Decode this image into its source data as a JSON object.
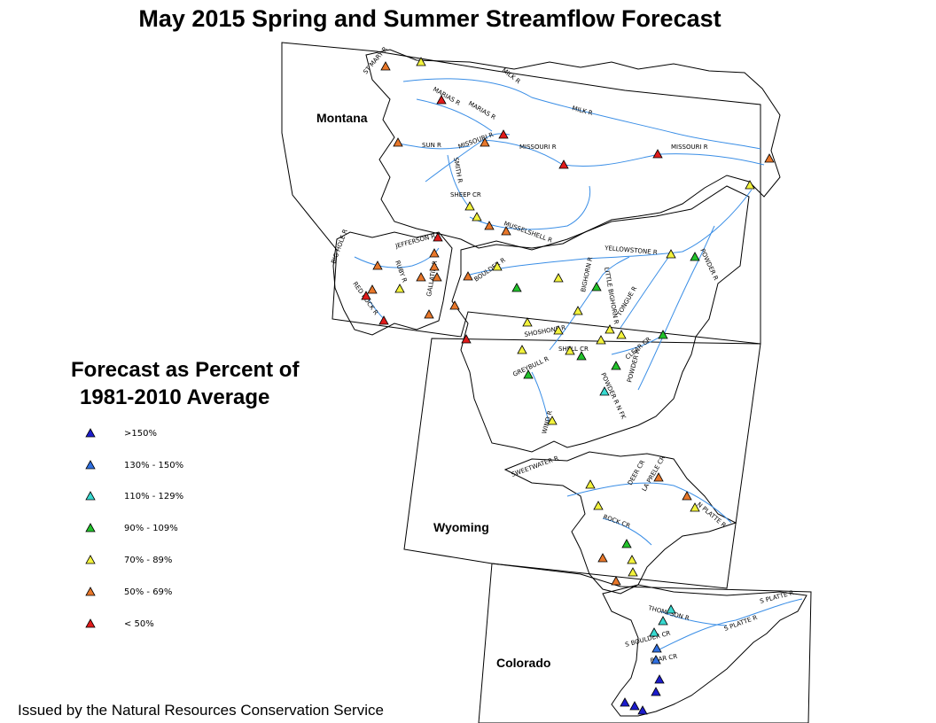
{
  "title": "May 2015 Spring and Summer Streamflow Forecast",
  "legend": {
    "title_line1": "Forecast as Percent of",
    "title_line2": "1981-2010 Average",
    "items": [
      {
        "label": ">150%",
        "color": "#1c1ccc"
      },
      {
        "label": "130% - 150%",
        "color": "#2f6fe0"
      },
      {
        "label": "110% - 129%",
        "color": "#38d9d0"
      },
      {
        "label": "90% - 109%",
        "color": "#22c22b"
      },
      {
        "label": "70% - 89%",
        "color": "#f2f23c"
      },
      {
        "label": "50% - 69%",
        "color": "#e8772a"
      },
      {
        "label": "< 50%",
        "color": "#e01b1b"
      }
    ]
  },
  "states": [
    {
      "name": "Montana"
    },
    {
      "name": "Wyoming"
    },
    {
      "name": "Colorado"
    }
  ],
  "rivers": [
    "MILK R",
    "MARIAS R",
    "MARIAS R",
    "MILK R",
    "SUN R",
    "MISSOURI R",
    "MISSOURI R",
    "MISSOURI R",
    "SMITH R",
    "SHEEP CR",
    "MUSSELSHELL R",
    "BIG HOLE R",
    "JEFFERSON R",
    "RUBY R",
    "GALLATIN R",
    "RED ROCK R",
    "BOULDER R",
    "YELLOWSTONE R",
    "POWDER R",
    "BIGHORN R",
    "LITTLE BIGHORN R",
    "TONGUE R",
    "SHOSHONE R",
    "SHELL CR",
    "GREYBULL R",
    "CLEAR CR",
    "POWDER R",
    "POWDER R N FK",
    "WIND R",
    "SWEETWATER R",
    "DEER CR",
    "LA PRELE CR",
    "N PLATTE R",
    "ROCK CR",
    "THOMPSON R",
    "S BOULDER CR",
    "BEAR CR",
    "S PLATTE R",
    "S PLATTE R",
    "ST MARY R"
  ],
  "credit": "Issued by the Natural Resources Conservation Service"
}
